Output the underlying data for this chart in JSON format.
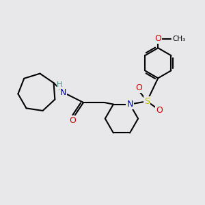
{
  "bg_color": "#e8e8eb",
  "bond_color": "#000000",
  "bond_width": 1.5,
  "atom_colors": {
    "N": "#0000cc",
    "O": "#cc0000",
    "S": "#bbbb00",
    "H": "#4a8a8a",
    "C": "#000000"
  }
}
